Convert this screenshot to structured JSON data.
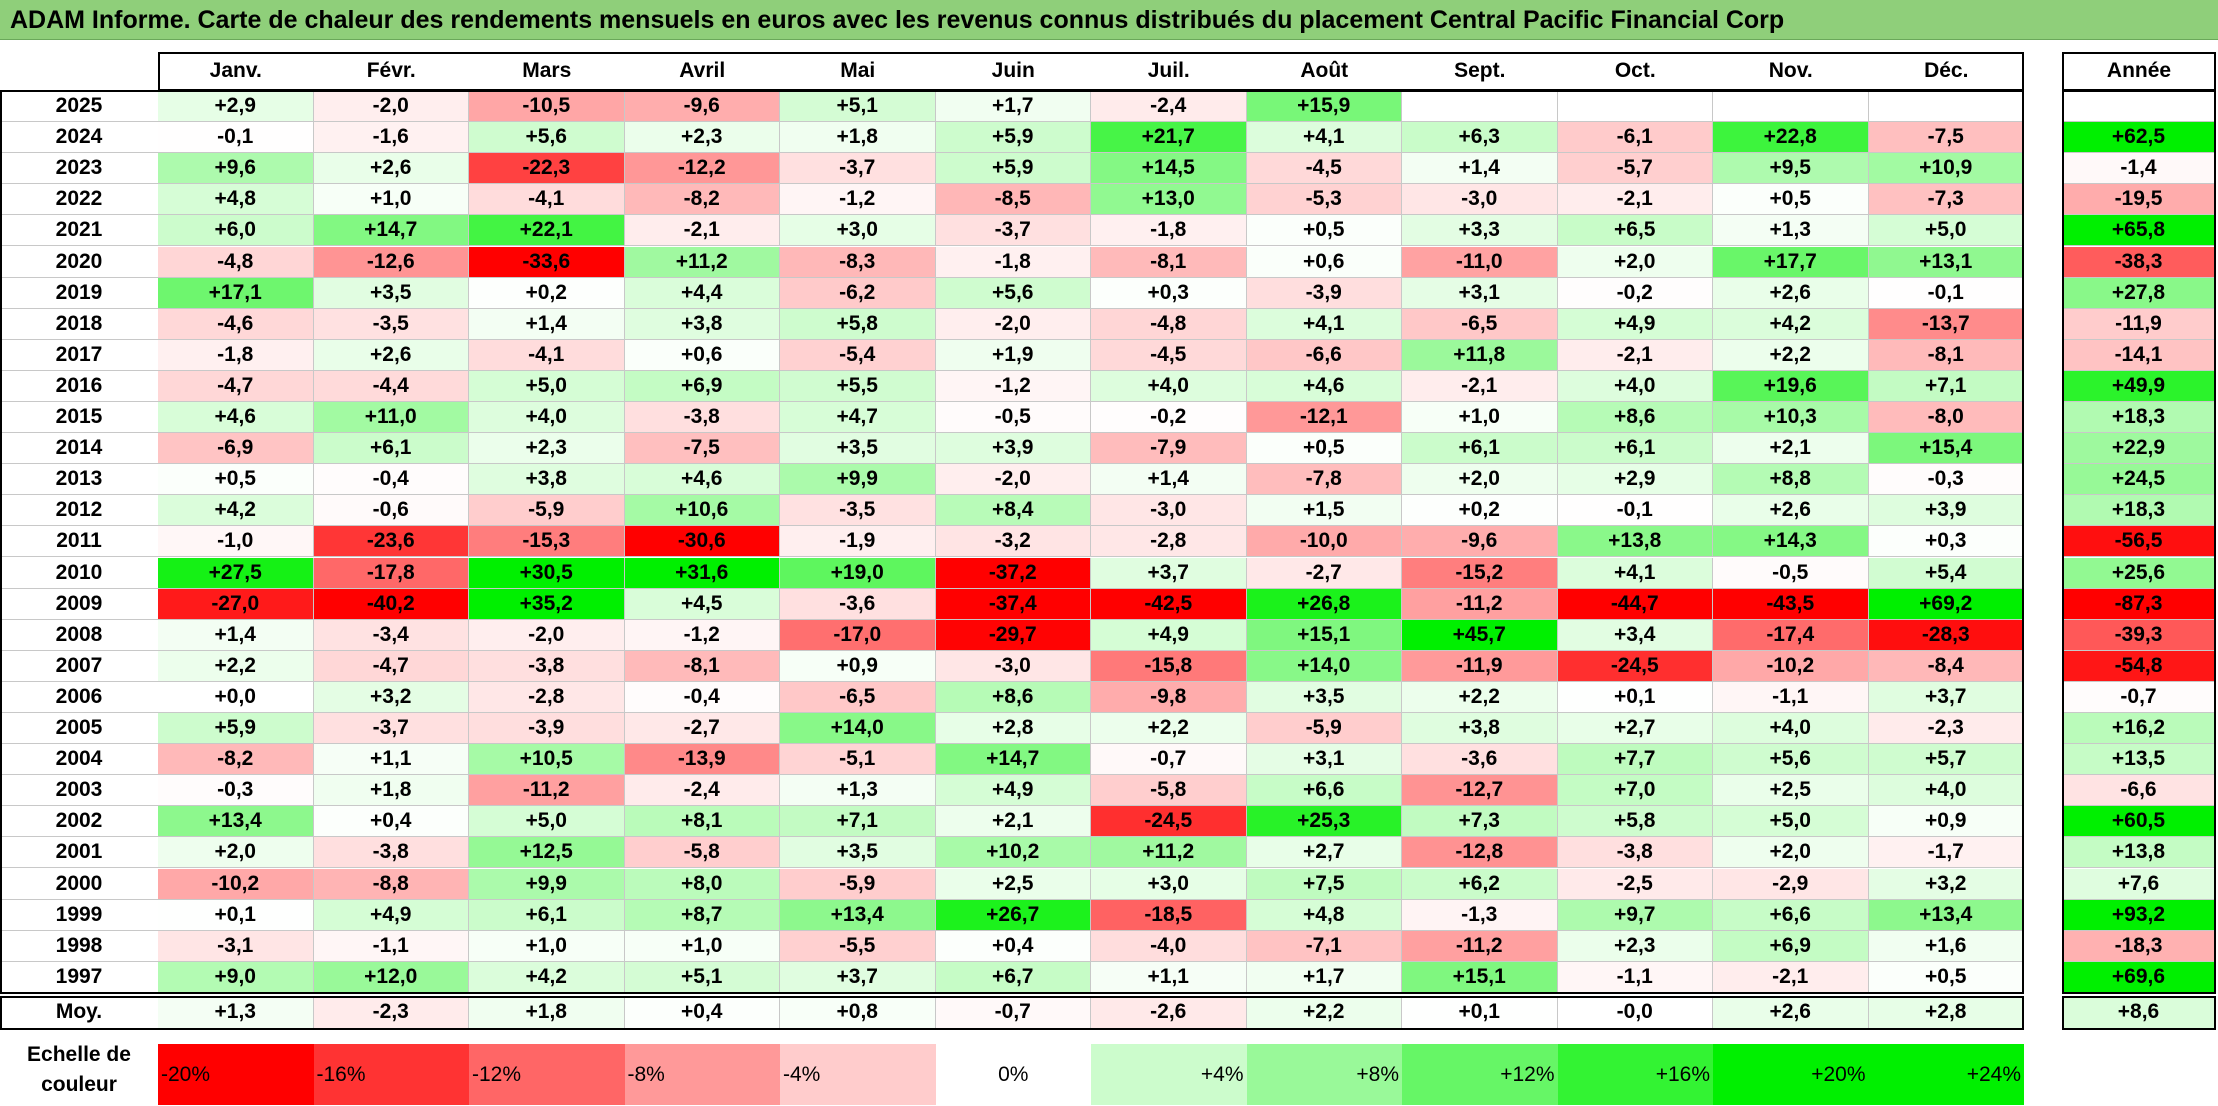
{
  "title": "ADAM Informe. Carte de chaleur des rendements mensuels en euros avec les revenus connus distribués du placement Central Pacific Financial Corp",
  "chart_data": {
    "type": "heatmap",
    "columns": [
      "Janv.",
      "Févr.",
      "Mars",
      "Avril",
      "Mai",
      "Juin",
      "Juil.",
      "Août",
      "Sept.",
      "Oct.",
      "Nov.",
      "Déc."
    ],
    "year_column": "Année",
    "rows": [
      {
        "year": "2025",
        "months": [
          "+2,9",
          "-2,0",
          "-10,5",
          "-9,6",
          "+5,1",
          "+1,7",
          "-2,4",
          "+15,9",
          "",
          "",
          "",
          ""
        ],
        "annual": ""
      },
      {
        "year": "2024",
        "months": [
          "-0,1",
          "-1,6",
          "+5,6",
          "+2,3",
          "+1,8",
          "+5,9",
          "+21,7",
          "+4,1",
          "+6,3",
          "-6,1",
          "+22,8",
          "-7,5"
        ],
        "annual": "+62,5"
      },
      {
        "year": "2023",
        "months": [
          "+9,6",
          "+2,6",
          "-22,3",
          "-12,2",
          "-3,7",
          "+5,9",
          "+14,5",
          "-4,5",
          "+1,4",
          "-5,7",
          "+9,5",
          "+10,9"
        ],
        "annual": "-1,4"
      },
      {
        "year": "2022",
        "months": [
          "+4,8",
          "+1,0",
          "-4,1",
          "-8,2",
          "-1,2",
          "-8,5",
          "+13,0",
          "-5,3",
          "-3,0",
          "-2,1",
          "+0,5",
          "-7,3"
        ],
        "annual": "-19,5"
      },
      {
        "year": "2021",
        "months": [
          "+6,0",
          "+14,7",
          "+22,1",
          "-2,1",
          "+3,0",
          "-3,7",
          "-1,8",
          "+0,5",
          "+3,3",
          "+6,5",
          "+1,3",
          "+5,0"
        ],
        "annual": "+65,8"
      },
      {
        "year": "2020",
        "months": [
          "-4,8",
          "-12,6",
          "-33,6",
          "+11,2",
          "-8,3",
          "-1,8",
          "-8,1",
          "+0,6",
          "-11,0",
          "+2,0",
          "+17,7",
          "+13,1"
        ],
        "annual": "-38,3"
      },
      {
        "year": "2019",
        "months": [
          "+17,1",
          "+3,5",
          "+0,2",
          "+4,4",
          "-6,2",
          "+5,6",
          "+0,3",
          "-3,9",
          "+3,1",
          "-0,2",
          "+2,6",
          "-0,1"
        ],
        "annual": "+27,8"
      },
      {
        "year": "2018",
        "months": [
          "-4,6",
          "-3,5",
          "+1,4",
          "+3,8",
          "+5,8",
          "-2,0",
          "-4,8",
          "+4,1",
          "-6,5",
          "+4,9",
          "+4,2",
          "-13,7"
        ],
        "annual": "-11,9"
      },
      {
        "year": "2017",
        "months": [
          "-1,8",
          "+2,6",
          "-4,1",
          "+0,6",
          "-5,4",
          "+1,9",
          "-4,5",
          "-6,6",
          "+11,8",
          "-2,1",
          "+2,2",
          "-8,1"
        ],
        "annual": "-14,1"
      },
      {
        "year": "2016",
        "months": [
          "-4,7",
          "-4,4",
          "+5,0",
          "+6,9",
          "+5,5",
          "-1,2",
          "+4,0",
          "+4,6",
          "-2,1",
          "+4,0",
          "+19,6",
          "+7,1"
        ],
        "annual": "+49,9"
      },
      {
        "year": "2015",
        "months": [
          "+4,6",
          "+11,0",
          "+4,0",
          "-3,8",
          "+4,7",
          "-0,5",
          "-0,2",
          "-12,1",
          "+1,0",
          "+8,6",
          "+10,3",
          "-8,0"
        ],
        "annual": "+18,3"
      },
      {
        "year": "2014",
        "months": [
          "-6,9",
          "+6,1",
          "+2,3",
          "-7,5",
          "+3,5",
          "+3,9",
          "-7,9",
          "+0,5",
          "+6,1",
          "+6,1",
          "+2,1",
          "+15,4"
        ],
        "annual": "+22,9"
      },
      {
        "year": "2013",
        "months": [
          "+0,5",
          "-0,4",
          "+3,8",
          "+4,6",
          "+9,9",
          "-2,0",
          "+1,4",
          "-7,8",
          "+2,0",
          "+2,9",
          "+8,8",
          "-0,3"
        ],
        "annual": "+24,5"
      },
      {
        "year": "2012",
        "months": [
          "+4,2",
          "-0,6",
          "-5,9",
          "+10,6",
          "-3,5",
          "+8,4",
          "-3,0",
          "+1,5",
          "+0,2",
          "-0,1",
          "+2,6",
          "+3,9"
        ],
        "annual": "+18,3"
      },
      {
        "year": "2011",
        "months": [
          "-1,0",
          "-23,6",
          "-15,3",
          "-30,6",
          "-1,9",
          "-3,2",
          "-2,8",
          "-10,0",
          "-9,6",
          "+13,8",
          "+14,3",
          "+0,3"
        ],
        "annual": "-56,5"
      },
      {
        "year": "2010",
        "months": [
          "+27,5",
          "-17,8",
          "+30,5",
          "+31,6",
          "+19,0",
          "-37,2",
          "+3,7",
          "-2,7",
          "-15,2",
          "+4,1",
          "-0,5",
          "+5,4"
        ],
        "annual": "+25,6"
      },
      {
        "year": "2009",
        "months": [
          "-27,0",
          "-40,2",
          "+35,2",
          "+4,5",
          "-3,6",
          "-37,4",
          "-42,5",
          "+26,8",
          "-11,2",
          "-44,7",
          "-43,5",
          "+69,2"
        ],
        "annual": "-87,3"
      },
      {
        "year": "2008",
        "months": [
          "+1,4",
          "-3,4",
          "-2,0",
          "-1,2",
          "-17,0",
          "-29,7",
          "+4,9",
          "+15,1",
          "+45,7",
          "+3,4",
          "-17,4",
          "-28,3"
        ],
        "annual": "-39,3"
      },
      {
        "year": "2007",
        "months": [
          "+2,2",
          "-4,7",
          "-3,8",
          "-8,1",
          "+0,9",
          "-3,0",
          "-15,8",
          "+14,0",
          "-11,9",
          "-24,5",
          "-10,2",
          "-8,4"
        ],
        "annual": "-54,8"
      },
      {
        "year": "2006",
        "months": [
          "+0,0",
          "+3,2",
          "-2,8",
          "-0,4",
          "-6,5",
          "+8,6",
          "-9,8",
          "+3,5",
          "+2,2",
          "+0,1",
          "-1,1",
          "+3,7"
        ],
        "annual": "-0,7"
      },
      {
        "year": "2005",
        "months": [
          "+5,9",
          "-3,7",
          "-3,9",
          "-2,7",
          "+14,0",
          "+2,8",
          "+2,2",
          "-5,9",
          "+3,8",
          "+2,7",
          "+4,0",
          "-2,3"
        ],
        "annual": "+16,2"
      },
      {
        "year": "2004",
        "months": [
          "-8,2",
          "+1,1",
          "+10,5",
          "-13,9",
          "-5,1",
          "+14,7",
          "-0,7",
          "+3,1",
          "-3,6",
          "+7,7",
          "+5,6",
          "+5,7"
        ],
        "annual": "+13,5"
      },
      {
        "year": "2003",
        "months": [
          "-0,3",
          "+1,8",
          "-11,2",
          "-2,4",
          "+1,3",
          "+4,9",
          "-5,8",
          "+6,6",
          "-12,7",
          "+7,0",
          "+2,5",
          "+4,0"
        ],
        "annual": "-6,6"
      },
      {
        "year": "2002",
        "months": [
          "+13,4",
          "+0,4",
          "+5,0",
          "+8,1",
          "+7,1",
          "+2,1",
          "-24,5",
          "+25,3",
          "+7,3",
          "+5,8",
          "+5,0",
          "+0,9"
        ],
        "annual": "+60,5"
      },
      {
        "year": "2001",
        "months": [
          "+2,0",
          "-3,8",
          "+12,5",
          "-5,8",
          "+3,5",
          "+10,2",
          "+11,2",
          "+2,7",
          "-12,8",
          "-3,8",
          "+2,0",
          "-1,7"
        ],
        "annual": "+13,8"
      },
      {
        "year": "2000",
        "months": [
          "-10,2",
          "-8,8",
          "+9,9",
          "+8,0",
          "-5,9",
          "+2,5",
          "+3,0",
          "+7,5",
          "+6,2",
          "-2,5",
          "-2,9",
          "+3,2"
        ],
        "annual": "+7,6"
      },
      {
        "year": "1999",
        "months": [
          "+0,1",
          "+4,9",
          "+6,1",
          "+8,7",
          "+13,4",
          "+26,7",
          "-18,5",
          "+4,8",
          "-1,3",
          "+9,7",
          "+6,6",
          "+13,4"
        ],
        "annual": "+93,2"
      },
      {
        "year": "1998",
        "months": [
          "-3,1",
          "-1,1",
          "+1,0",
          "+1,0",
          "-5,5",
          "+0,4",
          "-4,0",
          "-7,1",
          "-11,2",
          "+2,3",
          "+6,9",
          "+1,6"
        ],
        "annual": "-18,3"
      },
      {
        "year": "1997",
        "months": [
          "+9,0",
          "+12,0",
          "+4,2",
          "+5,1",
          "+3,7",
          "+6,7",
          "+1,1",
          "+1,7",
          "+15,1",
          "-1,1",
          "-2,1",
          "+0,5"
        ],
        "annual": "+69,6"
      }
    ],
    "average": {
      "label": "Moy.",
      "months": [
        "+1,3",
        "-2,3",
        "+1,8",
        "+0,4",
        "+0,8",
        "-0,7",
        "-2,6",
        "+2,2",
        "+0,1",
        "-0,0",
        "+2,6",
        "+2,8"
      ],
      "annual": "+8,6"
    },
    "scale": {
      "label_line1": "Echelle de",
      "label_line2": "couleur",
      "steps": [
        "-20%",
        "-16%",
        "-12%",
        "-8%",
        "-4%",
        "0%",
        "+4%",
        "+8%",
        "+12%",
        "+16%",
        "+20%",
        "+24%"
      ]
    },
    "colors": {
      "negative": "#ff0000",
      "neutral": "#ffffff",
      "positive": "#00ee00",
      "title_bar": "#8fcf7a"
    }
  }
}
